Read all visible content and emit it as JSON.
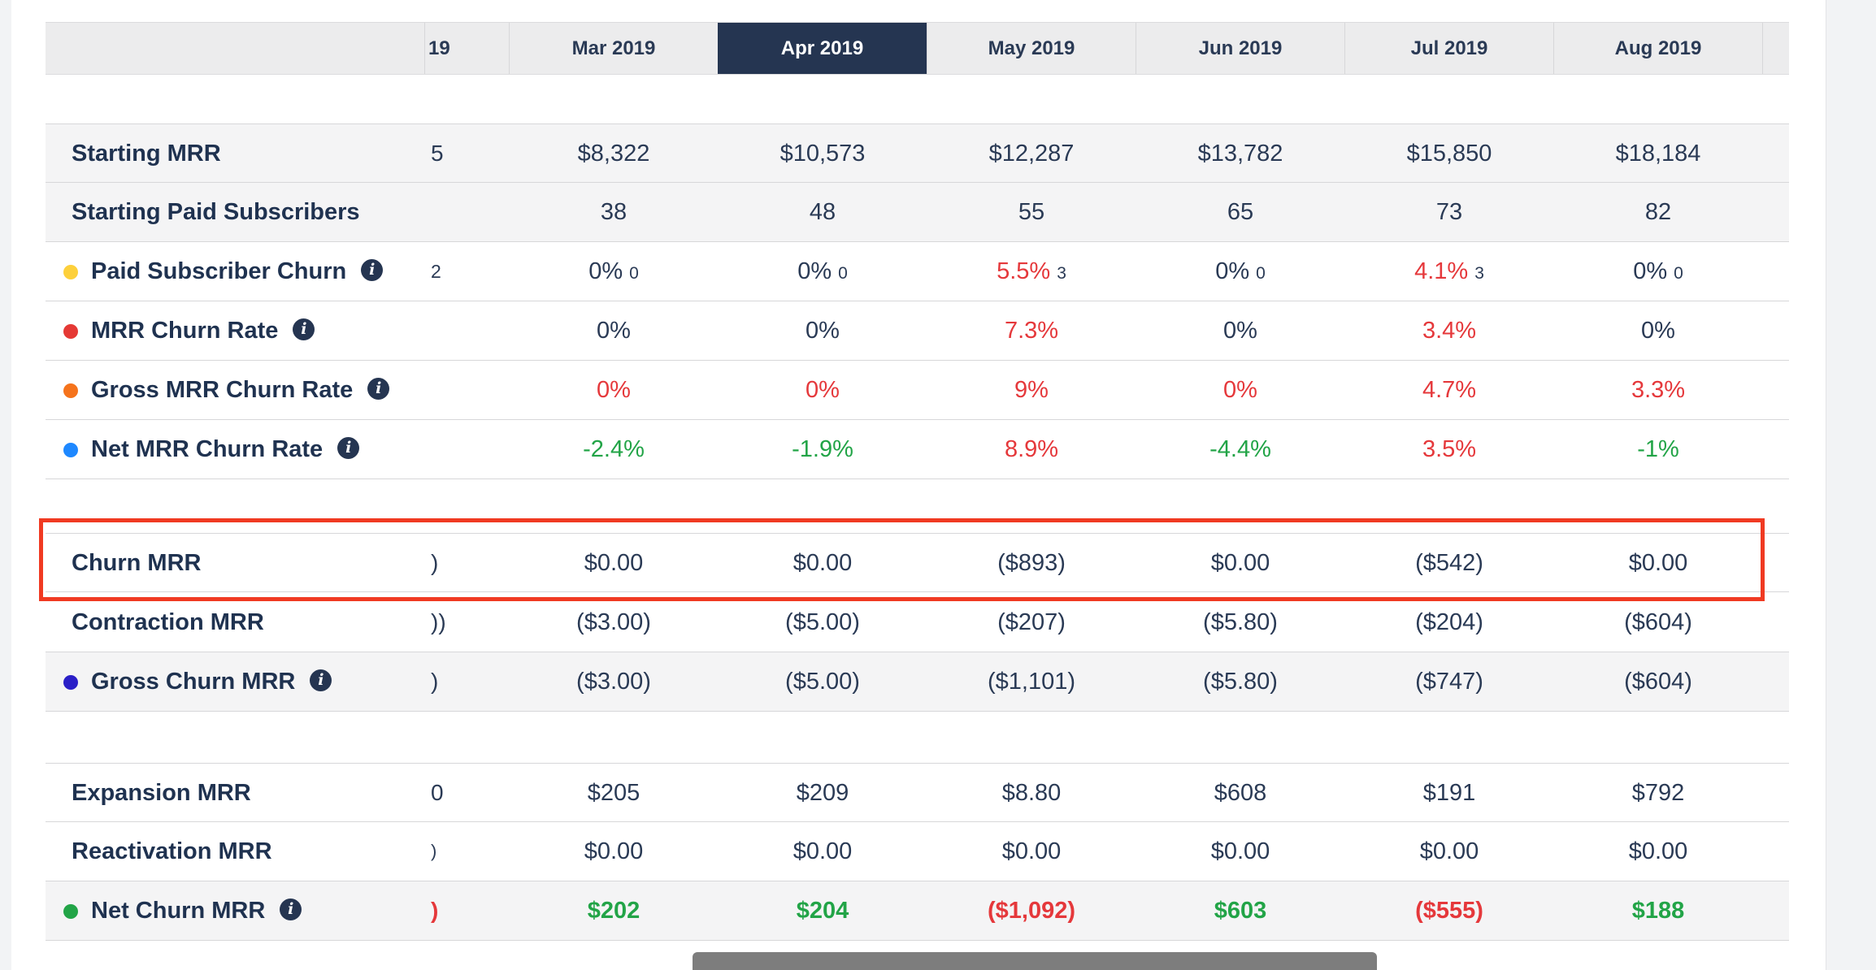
{
  "header": {
    "clipped_label": "19",
    "months": [
      "Mar 2019",
      "Apr 2019",
      "May 2019",
      "Jun 2019",
      "Jul 2019",
      "Aug 2019"
    ],
    "active_month": "Apr 2019"
  },
  "rows": [
    {
      "label": "Starting MRR",
      "clip": "5",
      "values": [
        "$8,322",
        "$10,573",
        "$12,287",
        "$13,782",
        "$15,850",
        "$18,184"
      ]
    },
    {
      "label": "Starting Paid Subscribers",
      "clip": "",
      "values": [
        "38",
        "48",
        "55",
        "65",
        "73",
        "82"
      ]
    },
    {
      "label": "Paid Subscriber Churn",
      "clip": "2",
      "values": [
        "0%",
        "0%",
        "5.5%",
        "0%",
        "4.1%",
        "0%"
      ],
      "counts": [
        "0",
        "0",
        "3",
        "0",
        "3",
        "0"
      ]
    },
    {
      "label": "MRR Churn Rate",
      "clip": "",
      "values": [
        "0%",
        "0%",
        "7.3%",
        "0%",
        "3.4%",
        "0%"
      ]
    },
    {
      "label": "Gross MRR Churn Rate",
      "clip": "",
      "values": [
        "0%",
        "0%",
        "9%",
        "0%",
        "4.7%",
        "3.3%"
      ]
    },
    {
      "label": "Net MRR Churn Rate",
      "clip": "",
      "values": [
        "-2.4%",
        "-1.9%",
        "8.9%",
        "-4.4%",
        "3.5%",
        "-1%"
      ]
    },
    {
      "label": "Churn MRR",
      "clip": ")",
      "values": [
        "$0.00",
        "$0.00",
        "($893)",
        "$0.00",
        "($542)",
        "$0.00"
      ]
    },
    {
      "label": "Contraction MRR",
      "clip": "))",
      "values": [
        "($3.00)",
        "($5.00)",
        "($207)",
        "($5.80)",
        "($204)",
        "($604)"
      ]
    },
    {
      "label": "Gross Churn MRR",
      "clip": ")",
      "values": [
        "($3.00)",
        "($5.00)",
        "($1,101)",
        "($5.80)",
        "($747)",
        "($604)"
      ]
    },
    {
      "label": "Expansion MRR",
      "clip": "0",
      "values": [
        "$205",
        "$209",
        "$8.80",
        "$608",
        "$191",
        "$792"
      ]
    },
    {
      "label": "Reactivation MRR",
      "clip": ")",
      "values": [
        "$0.00",
        "$0.00",
        "$0.00",
        "$0.00",
        "$0.00",
        "$0.00"
      ]
    },
    {
      "label": "Net Churn MRR",
      "clip": ")",
      "values": [
        "$202",
        "$204",
        "($1,092)",
        "$603",
        "($555)",
        "$188"
      ]
    }
  ],
  "icons": {
    "info": "i"
  },
  "colors": {
    "paid_subscriber_churn_dot": "#fdd03b",
    "mrr_churn_rate_dot": "#e53935",
    "gross_mrr_churn_rate_dot": "#f5731c",
    "net_mrr_churn_rate_dot": "#1e88ff",
    "gross_churn_mrr_dot": "#2a1fc7",
    "net_churn_mrr_dot": "#22a447",
    "negative": "#e5383b",
    "positive": "#22a447",
    "header_active": "#253551",
    "highlight_box": "#f03a22"
  }
}
